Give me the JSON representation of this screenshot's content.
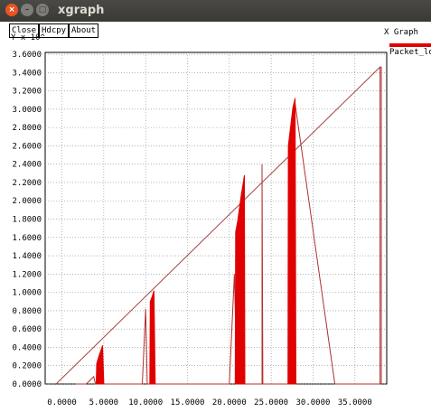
{
  "window": {
    "title": "xgraph",
    "controls": {
      "close": "×",
      "minimize": "–",
      "maximize": "□"
    }
  },
  "toolbar": {
    "close_label": "Close",
    "hdcpy_label": "Hdcpy",
    "about_label": "About"
  },
  "chart_data": {
    "type": "line",
    "title": "X Graph",
    "ylabel": "Y x 10^",
    "xlim": [
      -2000,
      38800
    ],
    "ylim": [
      0,
      3.62
    ],
    "grid": true,
    "legend_position": "top-right",
    "x_ticks": [
      {
        "v": 0,
        "label": "0.0000"
      },
      {
        "v": 5000,
        "label": "5.0000"
      },
      {
        "v": 10000,
        "label": "10.0000"
      },
      {
        "v": 15000,
        "label": "15.0000"
      },
      {
        "v": 20000,
        "label": "20.0000"
      },
      {
        "v": 25000,
        "label": "25.0000"
      },
      {
        "v": 30000,
        "label": "30.0000"
      },
      {
        "v": 35000,
        "label": "35.0000"
      }
    ],
    "y_ticks": [
      {
        "v": 0.0,
        "label": "0.0000"
      },
      {
        "v": 0.2,
        "label": "0.2000"
      },
      {
        "v": 0.4,
        "label": "0.4000"
      },
      {
        "v": 0.6,
        "label": "0.6000"
      },
      {
        "v": 0.8,
        "label": "0.8000"
      },
      {
        "v": 1.0,
        "label": "1.0000"
      },
      {
        "v": 1.2,
        "label": "1.2000"
      },
      {
        "v": 1.4,
        "label": "1.4000"
      },
      {
        "v": 1.6,
        "label": "1.6000"
      },
      {
        "v": 1.8,
        "label": "1.8000"
      },
      {
        "v": 2.0,
        "label": "2.0000"
      },
      {
        "v": 2.2,
        "label": "2.2000"
      },
      {
        "v": 2.4,
        "label": "2.4000"
      },
      {
        "v": 2.6,
        "label": "2.6000"
      },
      {
        "v": 2.8,
        "label": "2.8000"
      },
      {
        "v": 3.0,
        "label": "3.0000"
      },
      {
        "v": 3.2,
        "label": "3.2000"
      },
      {
        "v": 3.4,
        "label": "3.4000"
      },
      {
        "v": 3.6,
        "label": "3.6000"
      }
    ],
    "series": [
      {
        "name": "Packet_loss",
        "color": "#e00000",
        "line": [
          [
            -700,
            0
          ],
          [
            38000,
            3.46
          ]
        ],
        "trace": [
          [
            1700,
            0.0
          ],
          [
            2900,
            0.0
          ],
          [
            3800,
            0.08
          ],
          [
            4000,
            0.0
          ],
          [
            4200,
            0.0
          ],
          [
            5100,
            0.0
          ],
          [
            5700,
            0.0
          ],
          [
            9600,
            0.0
          ],
          [
            10000,
            0.82
          ],
          [
            10200,
            0.0
          ],
          [
            11200,
            0.0
          ],
          [
            11800,
            0.0
          ],
          [
            20000,
            0.0
          ],
          [
            20600,
            1.2
          ],
          [
            20900,
            0.0
          ],
          [
            21600,
            0.0
          ],
          [
            22400,
            0.0
          ],
          [
            23900,
            0.0
          ],
          [
            23900,
            2.4
          ],
          [
            24000,
            0.0
          ],
          [
            26600,
            0.0
          ],
          [
            27100,
            0.0
          ],
          [
            27800,
            3.1
          ],
          [
            28100,
            2.9
          ],
          [
            32600,
            0.0
          ],
          [
            38000,
            0.0
          ],
          [
            38000,
            3.46
          ],
          [
            38150,
            3.46
          ],
          [
            38150,
            0.0
          ]
        ],
        "bursts": [
          {
            "points": [
              [
                4100,
                0.0
              ],
              [
                4150,
                0.22
              ],
              [
                4400,
                0.3
              ],
              [
                4700,
                0.38
              ],
              [
                4850,
                0.42
              ],
              [
                5000,
                0.0
              ]
            ]
          },
          {
            "points": [
              [
                10500,
                0.0
              ],
              [
                10550,
                0.9
              ],
              [
                10800,
                0.96
              ],
              [
                11000,
                1.02
              ],
              [
                11150,
                0.0
              ]
            ]
          },
          {
            "points": [
              [
                20700,
                0.0
              ],
              [
                20750,
                1.66
              ],
              [
                21000,
                1.78
              ],
              [
                21400,
                2.05
              ],
              [
                21800,
                2.28
              ],
              [
                21850,
                0.0
              ]
            ]
          },
          {
            "points": [
              [
                27000,
                0.0
              ],
              [
                27050,
                2.6
              ],
              [
                27300,
                2.8
              ],
              [
                27600,
                3.02
              ],
              [
                27850,
                3.12
              ],
              [
                27950,
                0.0
              ]
            ]
          }
        ]
      }
    ]
  }
}
